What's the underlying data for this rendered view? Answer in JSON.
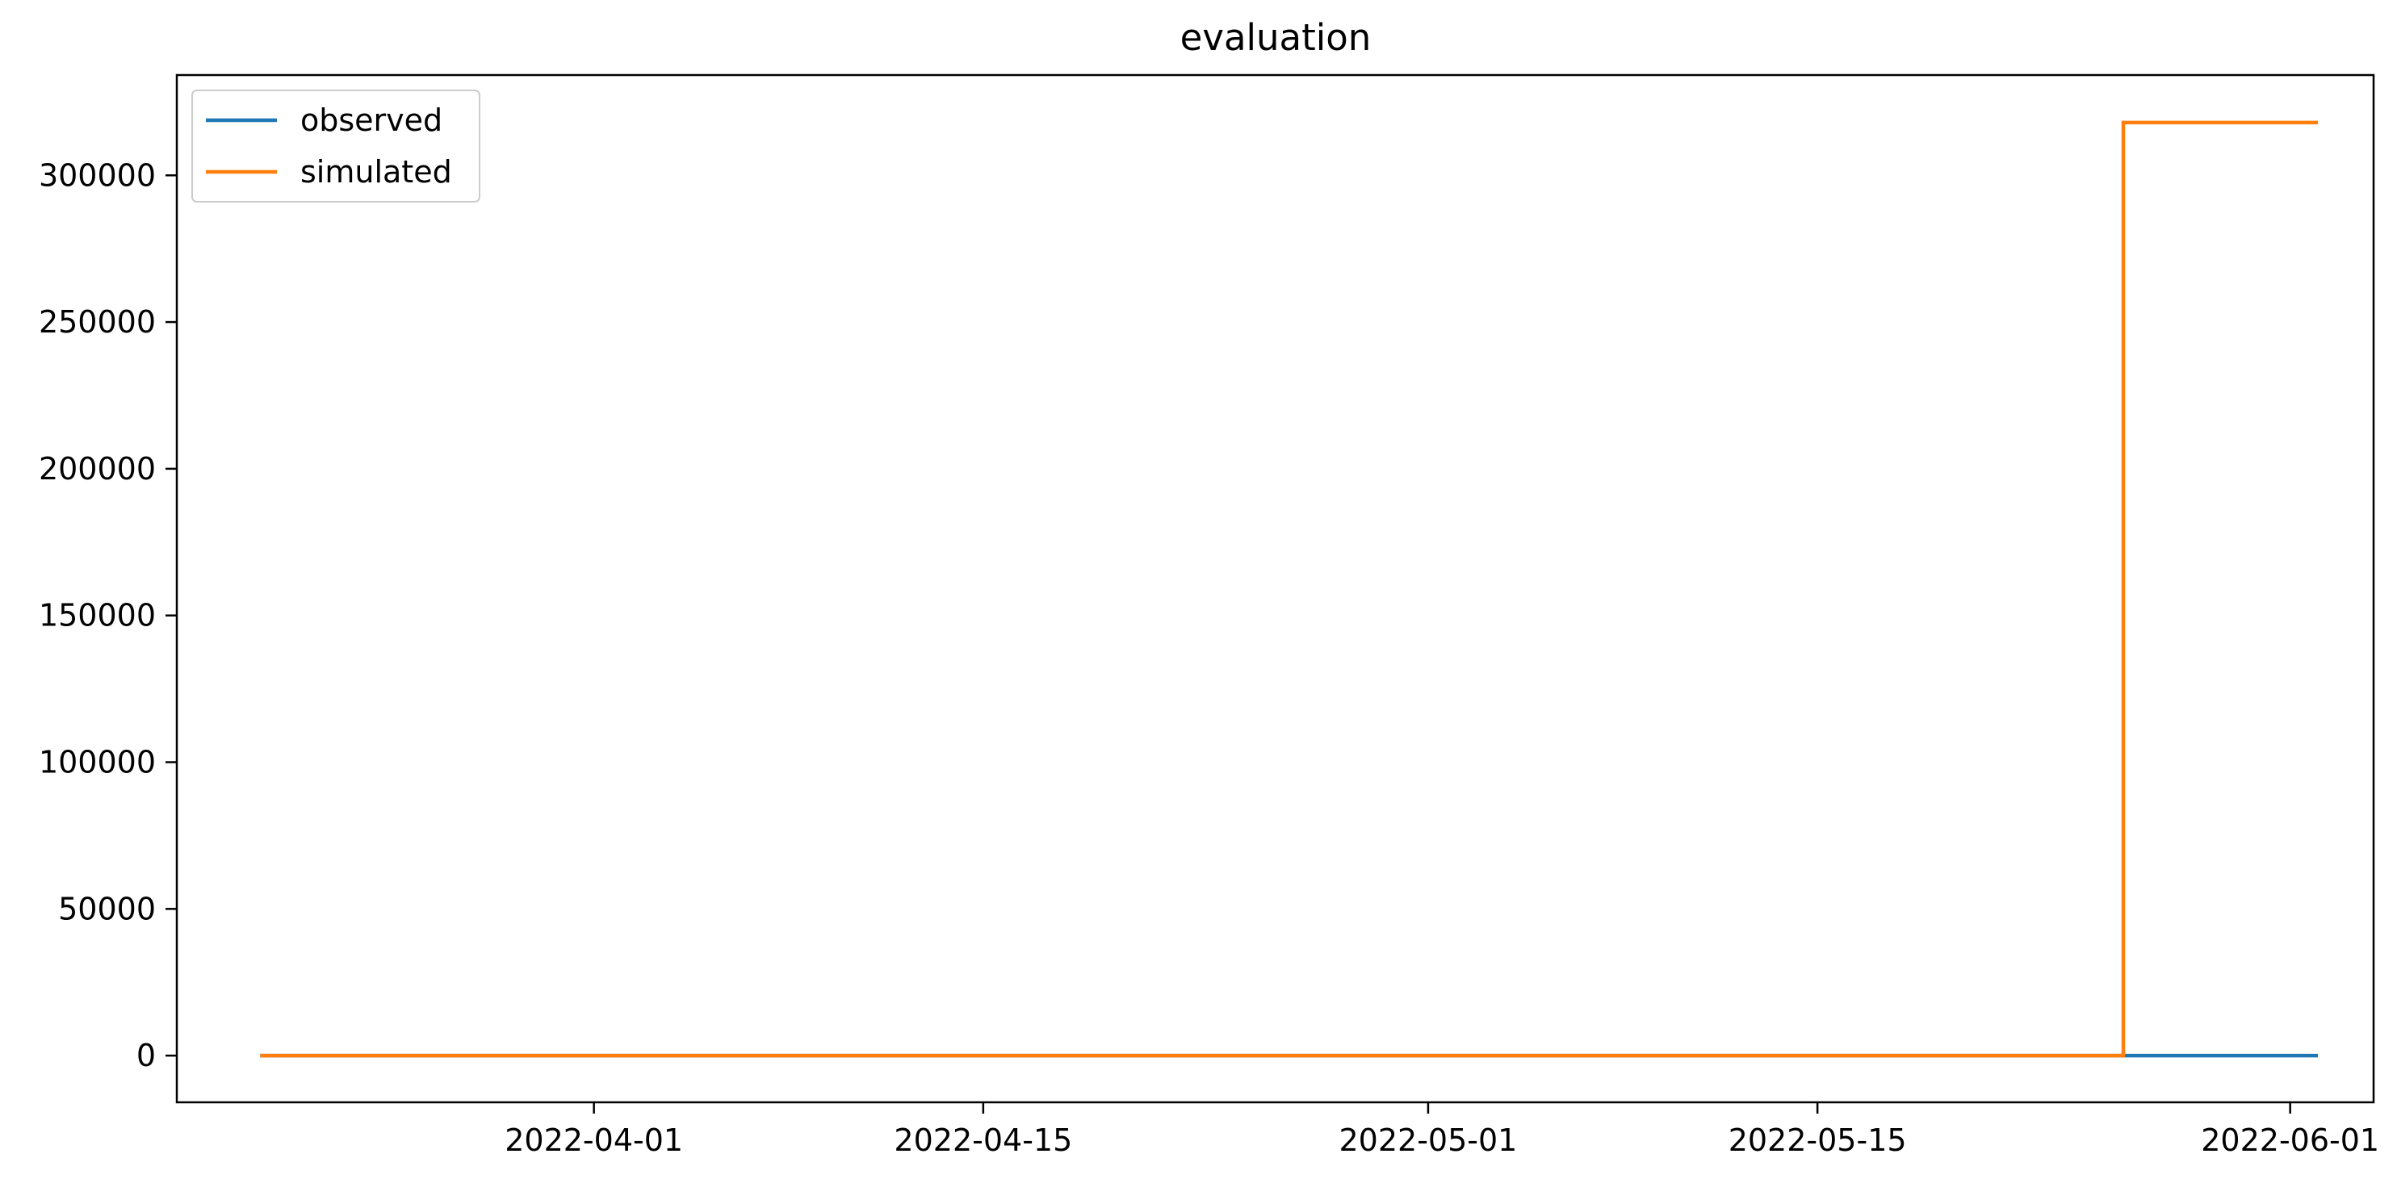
{
  "chart_data": {
    "type": "line",
    "title": "evaluation",
    "xlabel": "",
    "ylabel": "",
    "x_is_date": true,
    "xlim": [
      "2022-03-17",
      "2022-06-04"
    ],
    "ylim": [
      -15913,
      334178
    ],
    "x_ticks": [
      "2022-04-01",
      "2022-04-15",
      "2022-05-01",
      "2022-05-15",
      "2022-06-01"
    ],
    "y_ticks": [
      0,
      50000,
      100000,
      150000,
      200000,
      250000,
      300000
    ],
    "grid": false,
    "legend_position": "upper left",
    "series": [
      {
        "name": "observed",
        "color": "#1f77b4",
        "step": true,
        "x": [
          "2022-03-20",
          "2022-05-26",
          "2022-06-02"
        ],
        "y": [
          0,
          0,
          0
        ]
      },
      {
        "name": "simulated",
        "color": "#ff7f0e",
        "step": true,
        "x": [
          "2022-03-20",
          "2022-05-26",
          "2022-06-02"
        ],
        "y": [
          0,
          318000,
          318000
        ]
      }
    ]
  }
}
